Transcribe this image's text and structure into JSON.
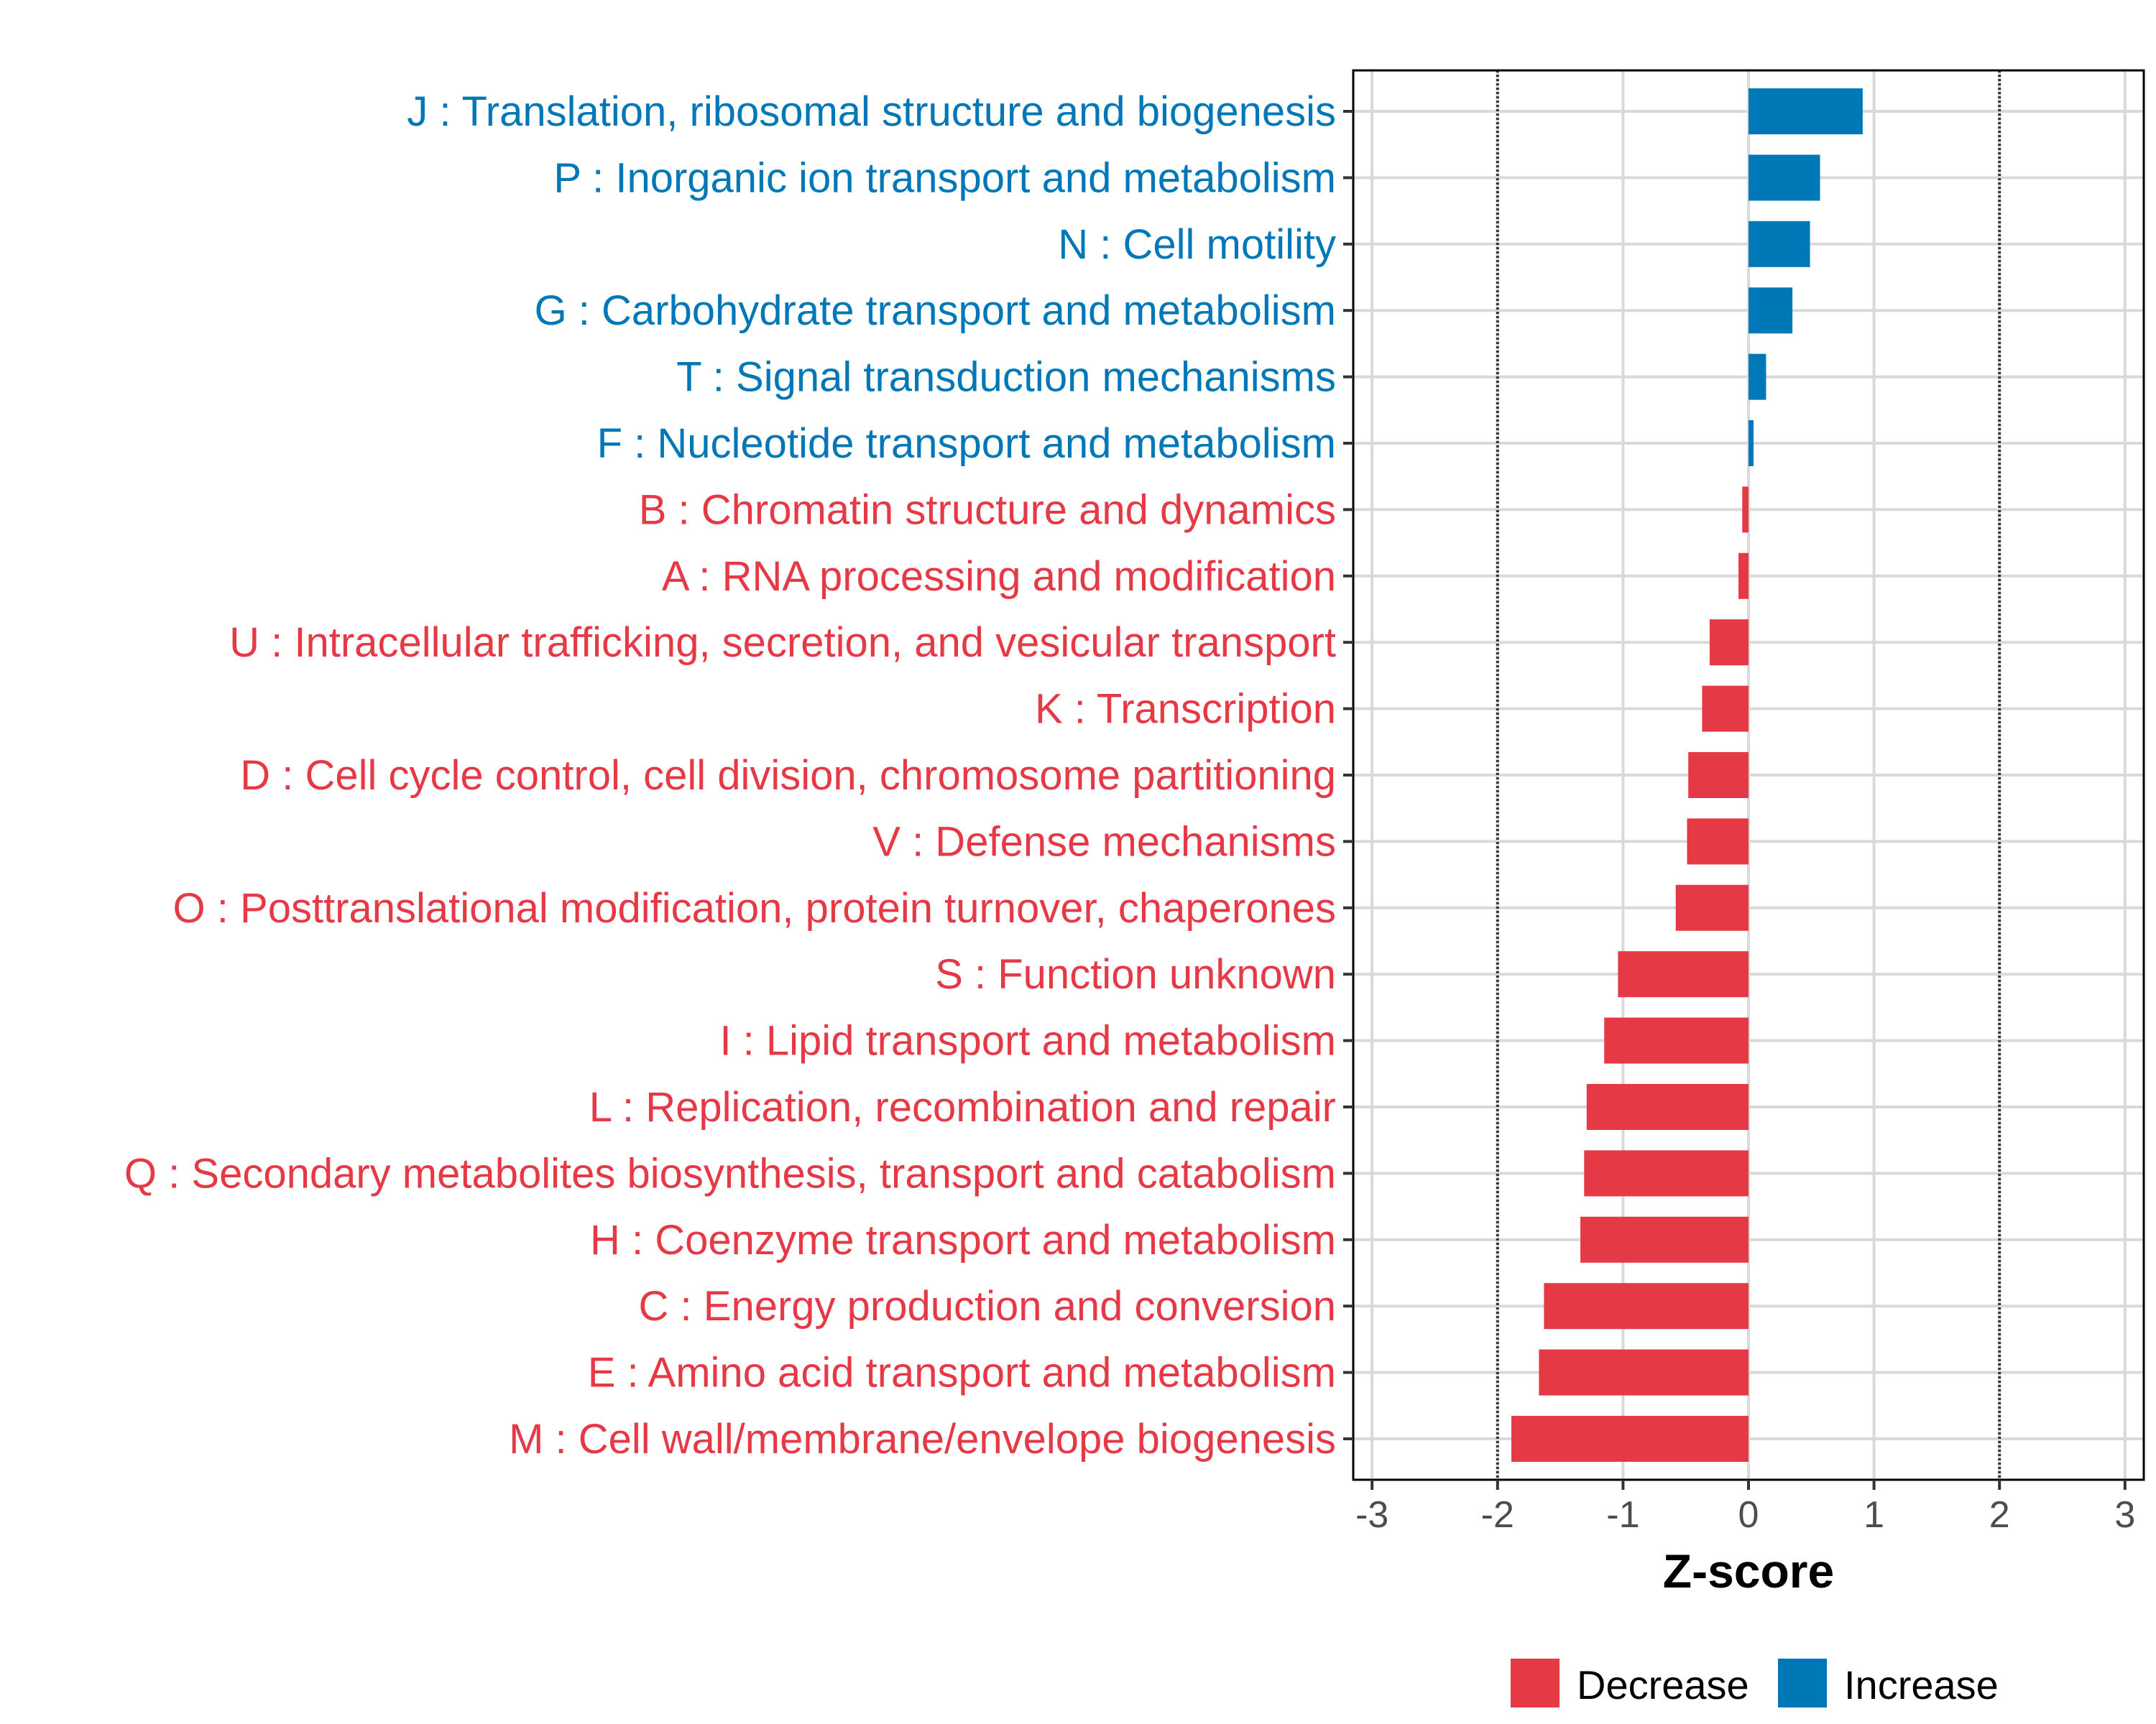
{
  "chart_data": {
    "type": "bar",
    "orientation": "horizontal",
    "title": "",
    "xlabel": "Z-score",
    "ylabel": "",
    "xlim": [
      -3.15,
      3.15
    ],
    "x_ticks": [
      -3,
      -2,
      -1,
      0,
      1,
      2,
      3
    ],
    "x_tick_labels": [
      "-3",
      "-2",
      "-1",
      "0",
      "1",
      "2",
      "3"
    ],
    "reference_lines": [
      -2,
      2
    ],
    "grid": true,
    "categories": [
      "J : Translation, ribosomal structure and biogenesis",
      "P : Inorganic ion transport and metabolism",
      "N : Cell motility",
      "G : Carbohydrate transport and metabolism",
      "T : Signal transduction mechanisms",
      "F : Nucleotide transport and metabolism",
      "B : Chromatin structure and dynamics",
      "A : RNA processing and modification",
      "U : Intracellular trafficking, secretion, and vesicular transport",
      "K : Transcription",
      "D : Cell cycle control, cell division, chromosome partitioning",
      "V : Defense mechanisms",
      "O : Posttranslational modification, protein turnover, chaperones",
      "S : Function unknown",
      "I : Lipid transport and metabolism",
      "L : Replication, recombination and repair",
      "Q : Secondary metabolites biosynthesis, transport and catabolism",
      "H : Coenzyme transport and metabolism",
      "C : Energy production and conversion",
      "E : Amino acid transport and metabolism",
      "M : Cell wall/membrane/envelope biogenesis"
    ],
    "values": [
      0.91,
      0.57,
      0.49,
      0.35,
      0.14,
      0.04,
      -0.05,
      -0.08,
      -0.31,
      -0.37,
      -0.48,
      -0.49,
      -0.58,
      -1.04,
      -1.15,
      -1.29,
      -1.31,
      -1.34,
      -1.63,
      -1.67,
      -1.89
    ],
    "legend": {
      "position": "bottom",
      "entries": [
        {
          "label": "Decrease",
          "color": "#E63946"
        },
        {
          "label": "Increase",
          "color": "#0077B6"
        }
      ]
    },
    "colors": {
      "decrease": "#E63946",
      "increase": "#0077B6",
      "grid": "#d9d9d9",
      "reference_line": "#333333",
      "panel_border": "#000000"
    }
  }
}
